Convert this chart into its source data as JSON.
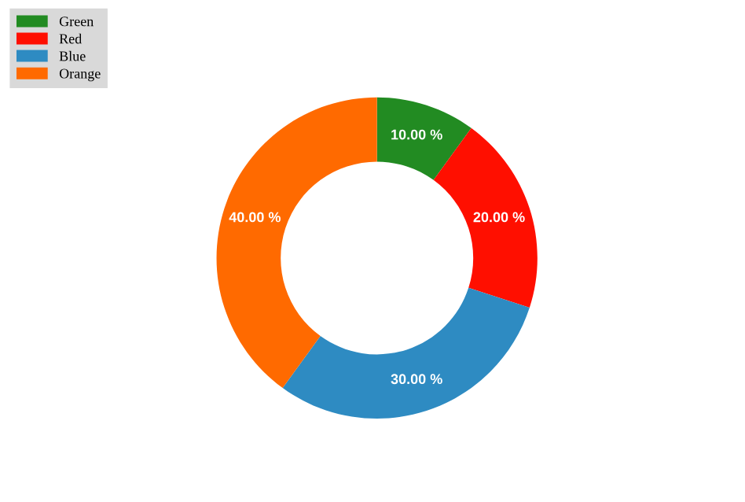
{
  "chart_data": {
    "type": "donut",
    "categories": [
      "Green",
      "Red",
      "Blue",
      "Orange"
    ],
    "values": [
      10,
      20,
      30,
      40
    ],
    "colors": [
      "#228b22",
      "#ff0f00",
      "#2e8bc2",
      "#ff6a00"
    ],
    "value_labels": [
      "10.00 %",
      "20.00 %",
      "30.00 %",
      "40.00 %"
    ],
    "legend": "top left"
  }
}
